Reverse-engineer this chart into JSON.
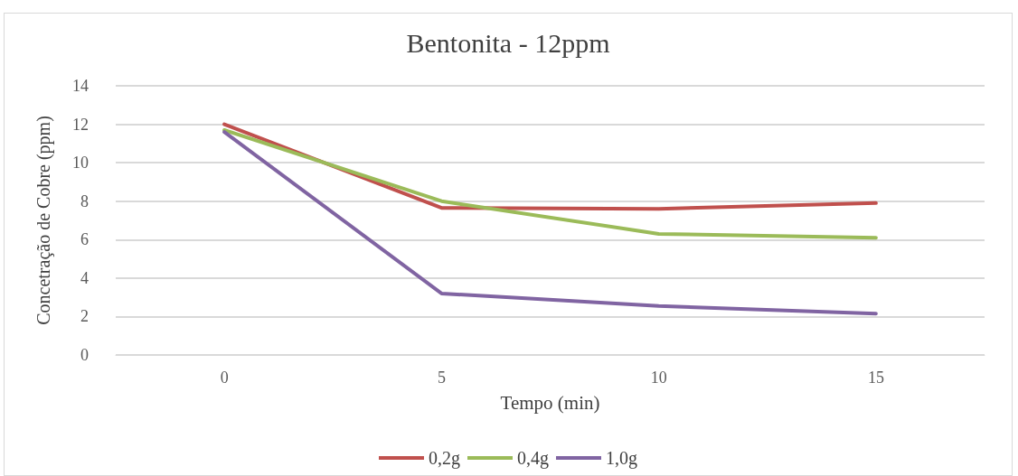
{
  "chart_data": {
    "type": "line",
    "title": "Bentonita - 12ppm",
    "xlabel": "Tempo (min)",
    "ylabel": "Concetração de Cobre (ppm)",
    "categories": [
      "0",
      "5",
      "10",
      "15"
    ],
    "series": [
      {
        "name": "0,2g",
        "color": "#c0504d",
        "values": [
          12.0,
          7.65,
          7.6,
          7.9
        ]
      },
      {
        "name": "0,4g",
        "color": "#9bbb59",
        "values": [
          11.7,
          8.0,
          6.3,
          6.1
        ]
      },
      {
        "name": "1,0g",
        "color": "#8064a2",
        "values": [
          11.6,
          3.2,
          2.55,
          2.15
        ]
      }
    ],
    "ylim": [
      0,
      14
    ],
    "yticks": [
      0,
      2,
      4,
      6,
      8,
      10,
      12,
      14
    ],
    "grid": "y",
    "legend": "bottom",
    "marker": "none",
    "line_style": "solid"
  }
}
